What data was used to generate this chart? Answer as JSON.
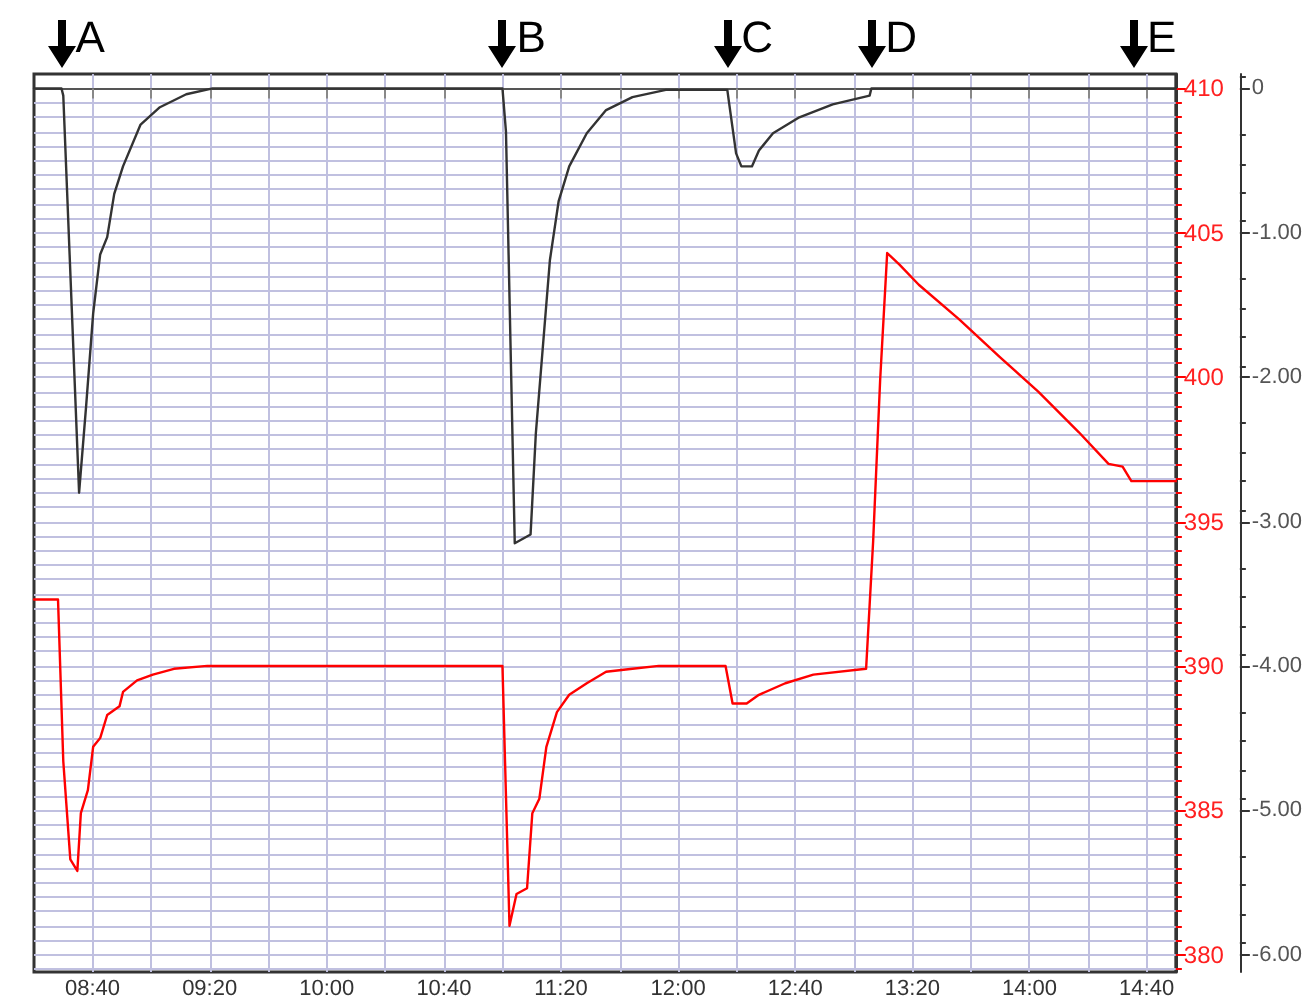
{
  "chart_data": {
    "type": "line",
    "xlim": [
      8.3333,
      14.8333
    ],
    "xticks": [
      {
        "value": 8.6667,
        "label": "08:40"
      },
      {
        "value": 9,
        "label": null
      },
      {
        "value": 9.3333,
        "label": "09:20"
      },
      {
        "value": 9.6667,
        "label": null
      },
      {
        "value": 10,
        "label": "10:00"
      },
      {
        "value": 10.3333,
        "label": null
      },
      {
        "value": 10.6667,
        "label": "10:40"
      },
      {
        "value": 11,
        "label": null
      },
      {
        "value": 11.3333,
        "label": "11:20"
      },
      {
        "value": 11.6667,
        "label": null
      },
      {
        "value": 12,
        "label": "12:00"
      },
      {
        "value": 12.3333,
        "label": null
      },
      {
        "value": 12.6667,
        "label": "12:40"
      },
      {
        "value": 13,
        "label": null
      },
      {
        "value": 13.3333,
        "label": "13:20"
      },
      {
        "value": 13.6667,
        "label": null
      },
      {
        "value": 14,
        "label": "14:00"
      },
      {
        "value": 14.3333,
        "label": null
      },
      {
        "value": 14.6667,
        "label": "14:40"
      }
    ],
    "ylim": [
      -6.12,
      0.1
    ],
    "yticks": [
      0,
      {
        "value": -1,
        "label": "-1.00"
      },
      {
        "value": -2,
        "label": "-2.00"
      },
      {
        "value": -3,
        "label": "-3.00"
      },
      {
        "value": -4,
        "label": "-4.00"
      },
      {
        "value": -5,
        "label": "-5.00"
      },
      {
        "value": -6,
        "label": "-6.00"
      }
    ],
    "y2lim": [
      379.4,
      410.5
    ],
    "y2ticks": [
      380,
      385,
      390,
      395,
      400,
      405,
      410
    ],
    "grid": true,
    "marker": "none",
    "line_style": "solid",
    "series": [
      {
        "color": "#333333",
        "axis": "y",
        "x": [
          8.3333,
          8.49,
          8.5,
          8.59,
          8.63,
          8.67,
          8.71,
          8.75,
          8.79,
          8.84,
          8.94,
          9.05,
          9.2,
          9.35,
          11.0,
          11.02,
          11.07,
          11.16,
          11.19,
          11.27,
          11.32,
          11.38,
          11.48,
          11.59,
          11.74,
          11.93,
          12.28,
          12.29,
          12.33,
          12.36,
          12.42,
          12.46,
          12.54,
          12.69,
          12.88,
          13.09,
          13.1,
          14.59,
          14.8333
        ],
        "values": [
          0,
          0,
          -0.05,
          -2.8,
          -2.2,
          -1.56,
          -1.15,
          -1.03,
          -0.73,
          -0.54,
          -0.25,
          -0.13,
          -0.04,
          0,
          0,
          -0.3,
          -3.15,
          -3.09,
          -2.39,
          -1.19,
          -0.78,
          -0.54,
          -0.31,
          -0.15,
          -0.06,
          -0.01,
          -0.01,
          -0.1,
          -0.45,
          -0.54,
          -0.54,
          -0.43,
          -0.31,
          -0.2,
          -0.11,
          -0.05,
          0,
          0,
          0
        ]
      },
      {
        "color": "#ff0000",
        "axis": "y2",
        "x": [
          8.3333,
          8.47,
          8.5,
          8.54,
          8.58,
          8.6,
          8.64,
          8.67,
          8.71,
          8.75,
          8.82,
          8.84,
          8.92,
          9.01,
          9.13,
          9.32,
          11.0,
          11.04,
          11.08,
          11.14,
          11.17,
          11.21,
          11.25,
          11.31,
          11.38,
          11.48,
          11.59,
          11.74,
          11.89,
          12.27,
          12.31,
          12.39,
          12.46,
          12.61,
          12.77,
          13.07,
          13.11,
          13.15,
          13.19,
          13.26,
          13.37,
          13.6,
          13.83,
          14.05,
          14.28,
          14.45,
          14.53,
          14.58,
          14.8333
        ],
        "values": [
          392.3,
          392.3,
          386.7,
          383.3,
          382.9,
          384.9,
          385.7,
          387.2,
          387.5,
          388.3,
          388.6,
          389.1,
          389.5,
          389.7,
          389.9,
          390.0,
          390.0,
          381.0,
          382.1,
          382.3,
          384.9,
          385.4,
          387.2,
          388.4,
          389.0,
          389.4,
          389.8,
          389.9,
          390.0,
          390.0,
          388.7,
          388.7,
          389.0,
          389.4,
          389.7,
          389.9,
          394.3,
          399.9,
          404.3,
          403.9,
          403.2,
          402.0,
          400.7,
          399.5,
          398.1,
          397.0,
          396.9,
          396.4,
          396.4
        ]
      }
    ],
    "annotations": [
      {
        "text": "A",
        "x": 8.49,
        "y": 0
      },
      {
        "text": "B",
        "x": 11.0,
        "y": 0
      },
      {
        "text": "C",
        "x": 12.28,
        "y": 0
      },
      {
        "text": "D",
        "x": 13.1,
        "y": 0
      },
      {
        "text": "E",
        "x": 14.59,
        "y": 0
      }
    ]
  }
}
